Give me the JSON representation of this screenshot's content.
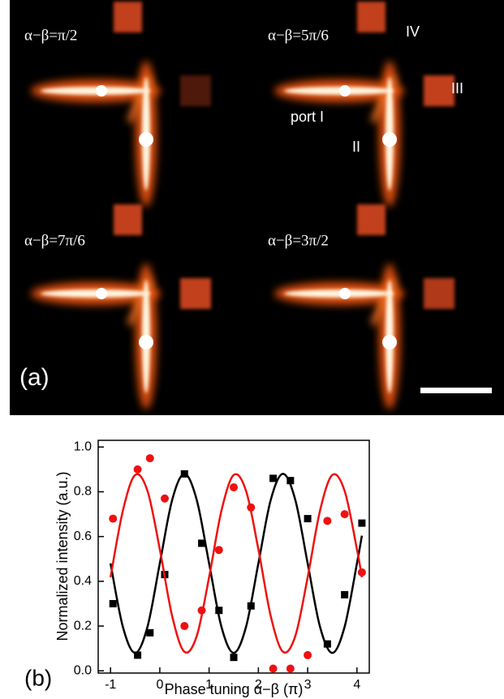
{
  "panel_a": {
    "label": "(a)",
    "insets": [
      "α−β=π/2",
      "α−β=5π/6",
      "α−β=7π/6",
      "α−β=3π/2"
    ],
    "ports": [
      "IV",
      "III",
      "port I",
      "II"
    ]
  },
  "panel_b_label": "(b)",
  "chart_data": {
    "type": "scatter",
    "x_label": "Phase tuning α−β (π)",
    "y_label": "Normalized intensity (a.u.)",
    "xlim": [
      -1.25,
      4.25
    ],
    "ylim": [
      -0.01,
      1.03
    ],
    "xticks": [
      -1,
      0,
      1,
      2,
      3,
      4
    ],
    "yticks": [
      {
        "value": 0,
        "label": "0.0"
      },
      0.2,
      0.4,
      0.6,
      0.8,
      {
        "value": 1,
        "label": "1.0"
      }
    ],
    "series": [
      {
        "marker": "square",
        "color": "#000000",
        "x": [
          -0.95,
          -0.45,
          -0.2,
          0.1,
          0.5,
          0.85,
          1.2,
          1.5,
          1.85,
          2.3,
          2.65,
          3.0,
          3.4,
          3.75,
          4.1
        ],
        "values": [
          0.3,
          0.07,
          0.17,
          0.43,
          0.88,
          0.57,
          0.27,
          0.06,
          0.29,
          0.86,
          0.85,
          0.68,
          0.12,
          0.34,
          0.66
        ]
      },
      {
        "marker": "circle",
        "color": "#ee1111",
        "x": [
          -0.95,
          -0.45,
          -0.2,
          0.1,
          0.5,
          0.85,
          1.2,
          1.5,
          1.85,
          2.3,
          2.65,
          3.0,
          3.4,
          3.75,
          4.1
        ],
        "values": [
          0.68,
          0.9,
          0.95,
          0.77,
          0.2,
          0.27,
          0.54,
          0.82,
          0.73,
          0.01,
          0.01,
          0.07,
          0.67,
          0.7,
          0.44
        ]
      },
      {
        "marker": "line",
        "color": "#000000",
        "x": [
          -1,
          -0.75,
          -0.5,
          -0.25,
          0,
          0.25,
          0.5,
          0.75,
          1,
          1.25,
          1.5,
          1.75,
          2,
          2.25,
          2.5,
          2.75,
          3,
          3.25,
          3.5,
          3.75,
          4,
          4.1
        ],
        "values": [
          0.48,
          0.197,
          0.08,
          0.197,
          0.48,
          0.763,
          0.88,
          0.763,
          0.48,
          0.197,
          0.08,
          0.197,
          0.48,
          0.763,
          0.88,
          0.763,
          0.48,
          0.197,
          0.08,
          0.197,
          0.48,
          0.604
        ]
      },
      {
        "marker": "line",
        "color": "#ee1111",
        "x": [
          -1,
          -0.75,
          -0.5,
          -0.25,
          0,
          0.25,
          0.5,
          0.75,
          1,
          1.25,
          1.5,
          1.75,
          2,
          2.25,
          2.5,
          2.75,
          3,
          3.25,
          3.5,
          3.75,
          4,
          4.1
        ],
        "values": [
          0.418,
          0.715,
          0.875,
          0.804,
          0.543,
          0.245,
          0.085,
          0.156,
          0.418,
          0.715,
          0.875,
          0.804,
          0.543,
          0.245,
          0.085,
          0.156,
          0.418,
          0.715,
          0.875,
          0.804,
          0.543,
          0.418
        ]
      }
    ]
  }
}
